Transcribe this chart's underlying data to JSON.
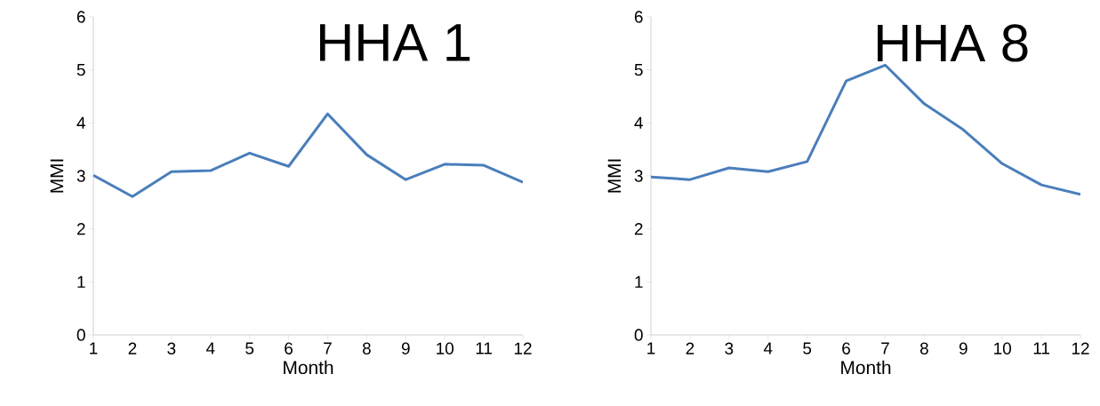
{
  "chart_data": [
    {
      "type": "line",
      "title": "HHA 1",
      "xlabel": "Month",
      "ylabel": "MMI",
      "categories": [
        "1",
        "2",
        "3",
        "4",
        "5",
        "6",
        "7",
        "8",
        "9",
        "10",
        "11",
        "12"
      ],
      "series": [
        {
          "color": "#4a7ebb",
          "values": [
            3.01,
            2.61,
            3.08,
            3.1,
            3.43,
            3.18,
            4.17,
            3.4,
            2.93,
            3.22,
            3.2,
            2.88
          ]
        }
      ],
      "ylim": [
        0,
        6
      ],
      "yticks": [
        0,
        1,
        2,
        3,
        4,
        5,
        6
      ],
      "marker": "none",
      "line_style": "solid"
    },
    {
      "type": "line",
      "title": "HHA 8",
      "xlabel": "Month",
      "ylabel": "MMI",
      "categories": [
        "1",
        "2",
        "3",
        "4",
        "5",
        "6",
        "7",
        "8",
        "9",
        "10",
        "11",
        "12"
      ],
      "series": [
        {
          "color": "#4a7ebb",
          "values": [
            2.98,
            2.93,
            3.15,
            3.08,
            3.27,
            4.79,
            5.09,
            4.36,
            3.87,
            3.23,
            2.83,
            2.65
          ]
        }
      ],
      "ylim": [
        0,
        6
      ],
      "yticks": [
        0,
        1,
        2,
        3,
        4,
        5,
        6
      ],
      "marker": "none",
      "line_style": "solid"
    }
  ]
}
